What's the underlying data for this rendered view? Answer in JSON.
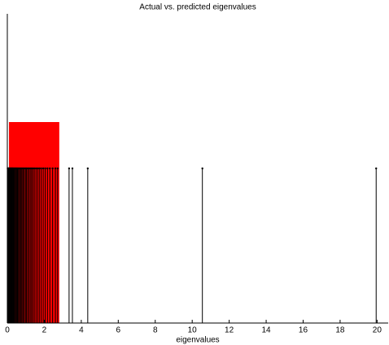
{
  "chart_data": {
    "type": "stem",
    "title": "Actual vs. predicted eigenvalues",
    "xlabel": "eigenvalues",
    "x": [
      0.02,
      0.04,
      0.06,
      0.08,
      0.1,
      0.13,
      0.16,
      0.19,
      0.22,
      0.25,
      0.28,
      0.31,
      0.35,
      0.39,
      0.43,
      0.47,
      0.51,
      0.55,
      0.6,
      0.65,
      0.7,
      0.75,
      0.8,
      0.86,
      0.92,
      0.98,
      1.04,
      1.1,
      1.17,
      1.24,
      1.31,
      1.38,
      1.46,
      1.55,
      1.64,
      1.73,
      1.83,
      1.94,
      2.05,
      2.17,
      2.3,
      2.45,
      2.6,
      2.72,
      3.34,
      3.52,
      4.35,
      10.55,
      19.95
    ],
    "values": [
      1,
      1,
      1,
      1,
      1,
      1,
      1,
      1,
      1,
      1,
      1,
      1,
      1,
      1,
      1,
      1,
      1,
      1,
      1,
      1,
      1,
      1,
      1,
      1,
      1,
      1,
      1,
      1,
      1,
      1,
      1,
      1,
      1,
      1,
      1,
      1,
      1,
      1,
      1,
      1,
      1,
      1,
      1,
      1,
      1,
      1,
      1,
      1,
      1
    ],
    "color": "#000000",
    "predicted": {
      "x": [
        0.09,
        2.81
      ],
      "value": 1.3,
      "color": "#ff0000"
    },
    "xlim": [
      0,
      20.6
    ],
    "ylim": [
      0,
      2
    ],
    "xticks": [
      0,
      2,
      4,
      6,
      8,
      10,
      12,
      14,
      16,
      18,
      20
    ]
  }
}
